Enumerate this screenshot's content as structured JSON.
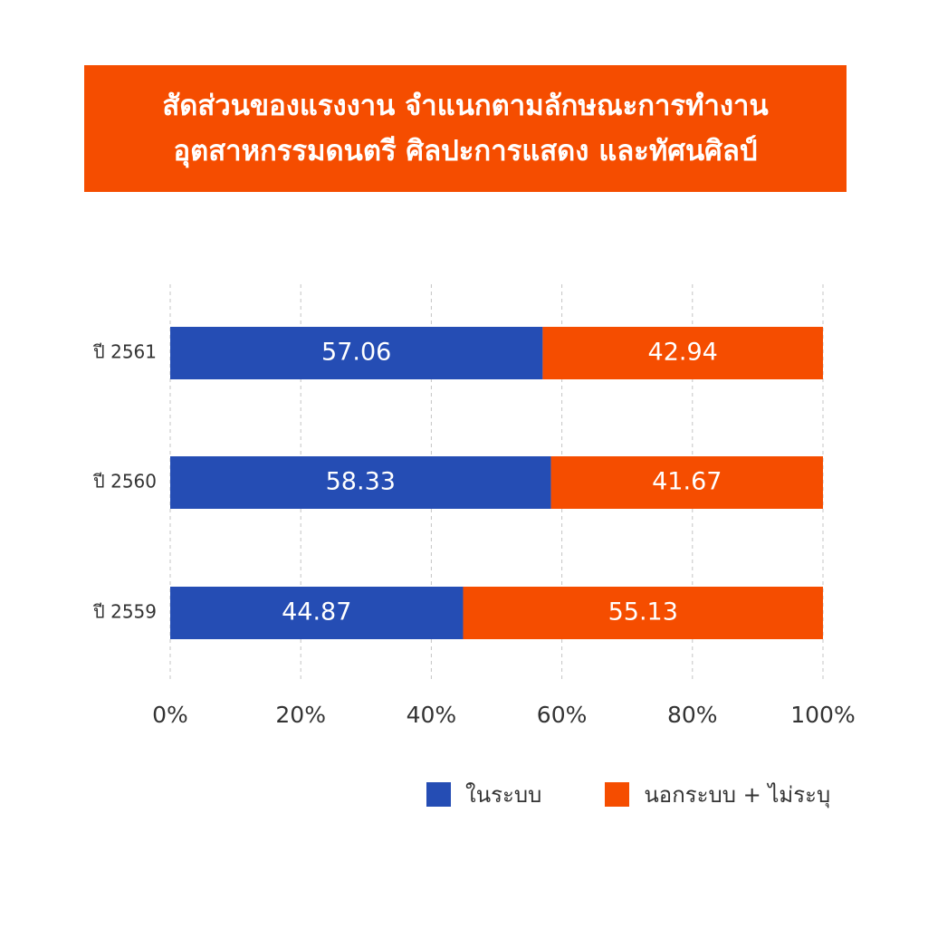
{
  "title": {
    "line1": "สัดส่วนของแรงงาน จำแนกตามลักษณะการทำงาน",
    "line2": "อุตสาหกรรมดนตรี ศิลปะการแสดง และทัศนศิลป์"
  },
  "colors": {
    "title_bg": "#f54d00",
    "formal": "#254db4",
    "informal": "#f54d00",
    "grid": "#c4c4c4",
    "tick_text": "#333333"
  },
  "chart_data": {
    "type": "bar",
    "orientation": "horizontal",
    "stacked": "percent",
    "categories": [
      "ปี 2561",
      "ปี 2560",
      "ปี 2559"
    ],
    "series": [
      {
        "name": "ในระบบ",
        "values": [
          57.06,
          58.33,
          44.87
        ],
        "labels": [
          "57.06",
          "58.33",
          "44.87"
        ]
      },
      {
        "name": "นอกระบบ + ไม่ระบุ",
        "values": [
          42.94,
          41.67,
          55.13
        ],
        "labels": [
          "42.94",
          "41.67",
          "55.13"
        ]
      }
    ],
    "xlim": [
      0,
      100
    ],
    "xticks": [
      "0%",
      "20%",
      "40%",
      "60%",
      "80%",
      "100%"
    ],
    "grid": "vertical dashed",
    "legend": "bottom"
  },
  "legend": {
    "items": [
      {
        "label": "ในระบบ",
        "color": "#254db4"
      },
      {
        "label": "นอกระบบ + ไม่ระบุ",
        "color": "#f54d00"
      }
    ]
  }
}
